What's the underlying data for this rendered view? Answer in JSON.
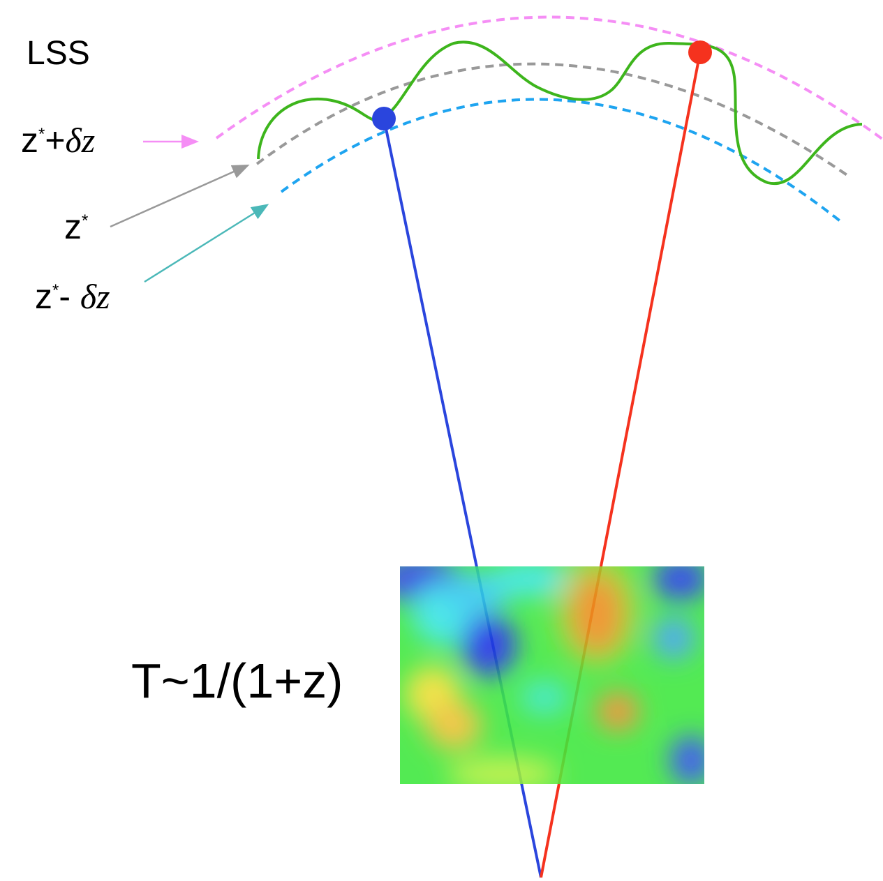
{
  "labels": {
    "lss": "LSS",
    "upper": {
      "z": "z",
      "star": "*",
      "op": "+",
      "dz": "δz"
    },
    "middle": {
      "z": "z",
      "star": "*"
    },
    "lower": {
      "z": "z",
      "star": "*",
      "op": "- ",
      "dz": "δz"
    },
    "temperature": "T~1/(1+z)"
  }
}
